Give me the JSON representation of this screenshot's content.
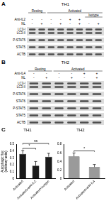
{
  "figure": {
    "panel_a": {
      "letter": "A",
      "title": "TH1",
      "group_rows": [
        [
          {
            "label": "Resting",
            "span": 2
          },
          {
            "label": "Activated",
            "span": 6
          }
        ],
        [
          {
            "label": null,
            "span": 6
          },
          {
            "label": "Isotype",
            "span": 2
          }
        ]
      ],
      "treatments": [
        {
          "label": "Anti-IL2",
          "signs": [
            "-",
            "-",
            "-",
            "-",
            "+",
            "+",
            "",
            ""
          ]
        },
        {
          "label": "NL",
          "signs": [
            "-",
            "+",
            "-",
            "+",
            "-",
            "+",
            "-",
            "+"
          ]
        }
      ],
      "blots": [
        [
          "LC3-I",
          "LC3-II"
        ],
        [
          "P-STAT5"
        ],
        [
          "STAT5"
        ],
        [
          "ACTB"
        ]
      ]
    },
    "panel_b": {
      "letter": "B",
      "title": "TH2",
      "group_rows": [
        [
          {
            "label": "Resting",
            "span": 2
          },
          {
            "label": "Activated",
            "span": 4
          }
        ]
      ],
      "treatments": [
        {
          "label": "Anti-IL4",
          "signs": [
            "-",
            "-",
            "-",
            "-",
            "+",
            "+"
          ]
        },
        {
          "label": "NL",
          "signs": [
            "-",
            "+",
            "-",
            "+",
            "-",
            "+"
          ]
        }
      ],
      "blots": [
        [
          "LC3-I",
          "LC3-II"
        ],
        [
          "P-STAT6"
        ],
        [
          "STAT6"
        ],
        [
          "P-STAT5"
        ],
        [
          "STAT5"
        ],
        [
          "ACTB"
        ]
      ]
    },
    "panel_c": {
      "letter": "C"
    }
  },
  "chart_data": [
    {
      "type": "bar",
      "title": "TH1",
      "y_label": [
        "Autophagic flux",
        "(arbitrary units)"
      ],
      "categories": [
        "Activated",
        "Activated+anti-IL2",
        "Activated+isotype"
      ],
      "values": [
        0.36,
        0.19,
        0.32
      ],
      "errors": [
        0.05,
        0.06,
        0.05
      ],
      "color": "#1a1a1a",
      "ylim": [
        0,
        0.5
      ],
      "yticks": [
        0,
        0.1,
        0.2,
        0.3,
        0.4,
        0.5
      ],
      "grid": false,
      "annotations": [
        {
          "text": "*",
          "from": 0,
          "to": 1
        },
        {
          "text": "ns",
          "from": 0,
          "to": 2
        }
      ]
    },
    {
      "type": "bar",
      "title": "TH2",
      "categories": [
        "Activated",
        "Activated+anti-IL4"
      ],
      "values": [
        0.52,
        0.27
      ],
      "errors": [
        0.08,
        0.06
      ],
      "color": "#9a9a9a",
      "ylim": [
        0,
        0.8
      ],
      "yticks": [
        0,
        0.2,
        0.4,
        0.6,
        0.8
      ],
      "grid": false,
      "annotations": [
        {
          "text": "*",
          "from": 0,
          "to": 1
        }
      ]
    }
  ]
}
